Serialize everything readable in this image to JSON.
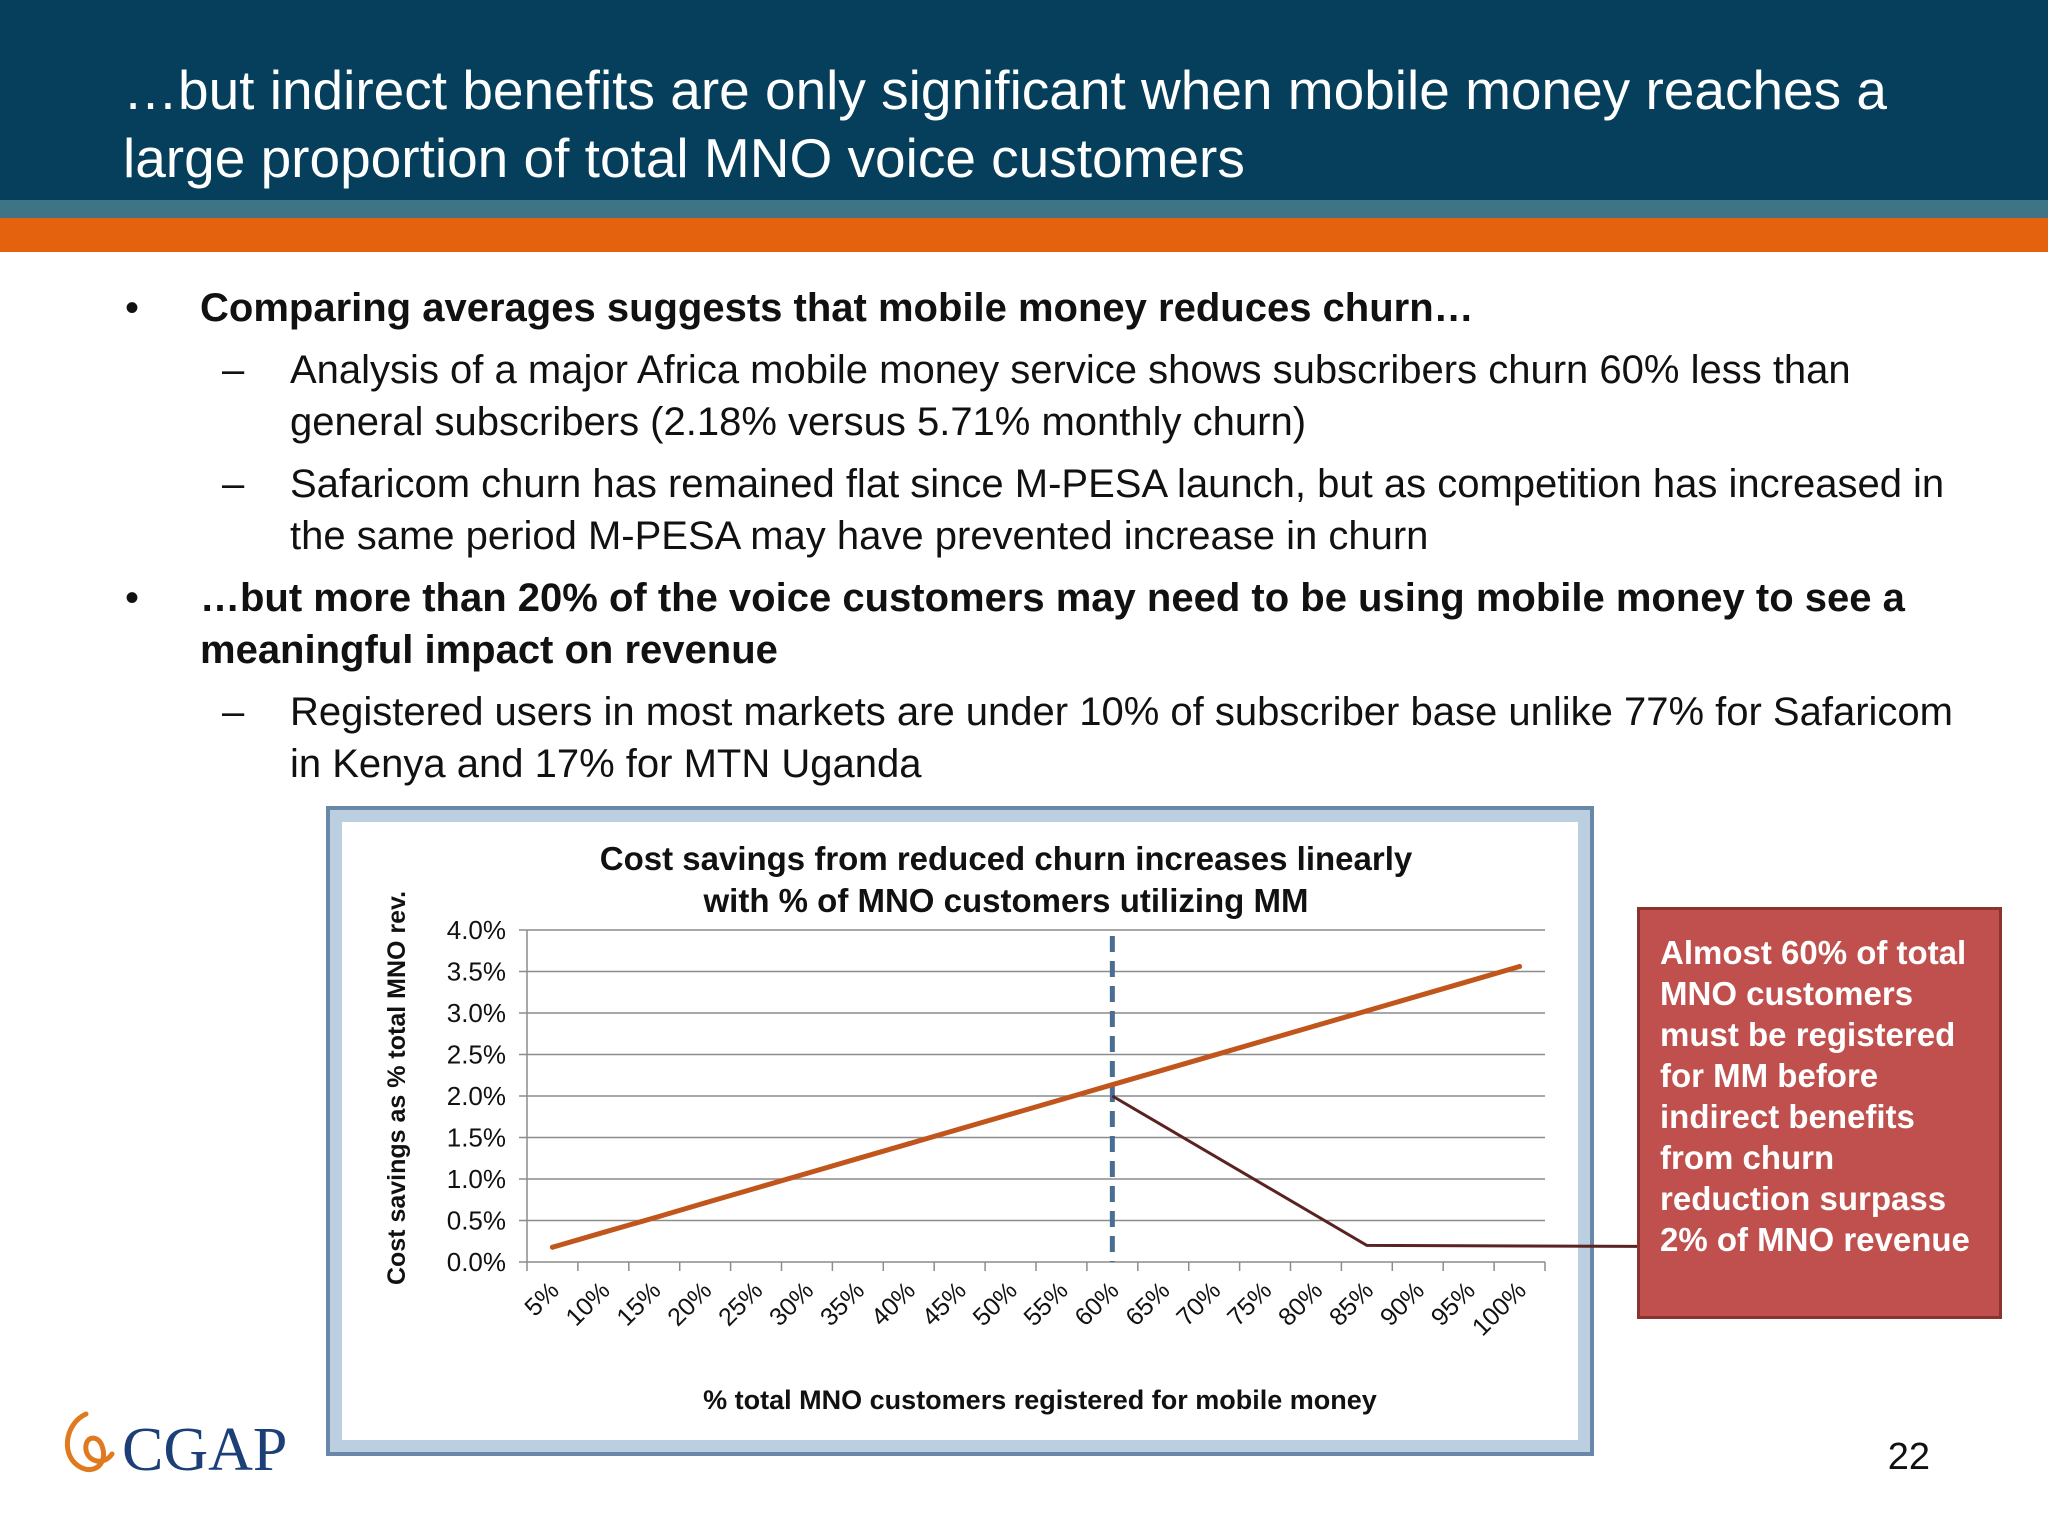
{
  "slide": {
    "title": "…but indirect benefits are only significant when mobile money reaches a large proportion of total MNO voice customers",
    "page_number": "22"
  },
  "bullets": [
    {
      "text": "Comparing averages suggests that mobile money reduces churn…",
      "subs": [
        "Analysis of a major Africa mobile money service shows subscribers churn 60% less than general subscribers (2.18% versus 5.71% monthly churn)",
        "Safaricom churn has remained flat since M-PESA launch, but as competition has increased in the same period M-PESA may have prevented increase in churn"
      ]
    },
    {
      "text": "…but more than 20% of the voice customers may need to be using mobile money to see a meaningful impact on revenue",
      "subs": [
        "Registered users in most markets are under 10% of subscriber base unlike 77% for Safaricom in Kenya and 17% for MTN Uganda"
      ]
    }
  ],
  "bullet_mark": "•",
  "sub_mark": "–",
  "callout": {
    "text": "Almost 60% of total MNO customers must be registered for MM before indirect benefits from churn reduction surpass 2% of MNO revenue"
  },
  "logo": {
    "text": "CGAP",
    "color": "#1d3f78",
    "mark_color": "#e07a1f"
  },
  "chart_data": {
    "type": "line",
    "title": "Cost savings from reduced churn increases linearly with % of MNO customers utilizing MM",
    "title_lines": [
      "Cost savings from reduced churn increases linearly",
      "with % of MNO customers utilizing MM"
    ],
    "xlabel": "% total MNO customers registered for mobile money",
    "ylabel": "Cost savings as % total MNO rev.",
    "categories": [
      "5%",
      "10%",
      "15%",
      "20%",
      "25%",
      "30%",
      "35%",
      "40%",
      "45%",
      "50%",
      "55%",
      "60%",
      "65%",
      "70%",
      "75%",
      "80%",
      "85%",
      "90%",
      "95%",
      "100%"
    ],
    "series": [
      {
        "values": [
          0.178,
          0.356,
          0.532,
          0.712,
          0.89,
          1.068,
          1.246,
          1.424,
          1.602,
          1.78,
          1.958,
          2.136,
          2.314,
          2.492,
          2.67,
          2.848,
          3.026,
          3.204,
          3.382,
          3.56
        ],
        "color": "#c0561c"
      }
    ],
    "ylim": [
      0,
      4.0
    ],
    "yticks": [
      "0.0%",
      "0.5%",
      "1.0%",
      "1.5%",
      "2.0%",
      "2.5%",
      "3.0%",
      "3.5%",
      "4.0%"
    ],
    "grid": true,
    "annotations": [
      {
        "type": "vertical-dashed-line",
        "x": "60%",
        "color": "#4a6e93"
      },
      {
        "type": "callout-leader",
        "color": "#5a2220",
        "from_x": "60%",
        "from_y": 2.0,
        "elbow_x": "85%",
        "elbow_y": 0.2
      }
    ]
  }
}
